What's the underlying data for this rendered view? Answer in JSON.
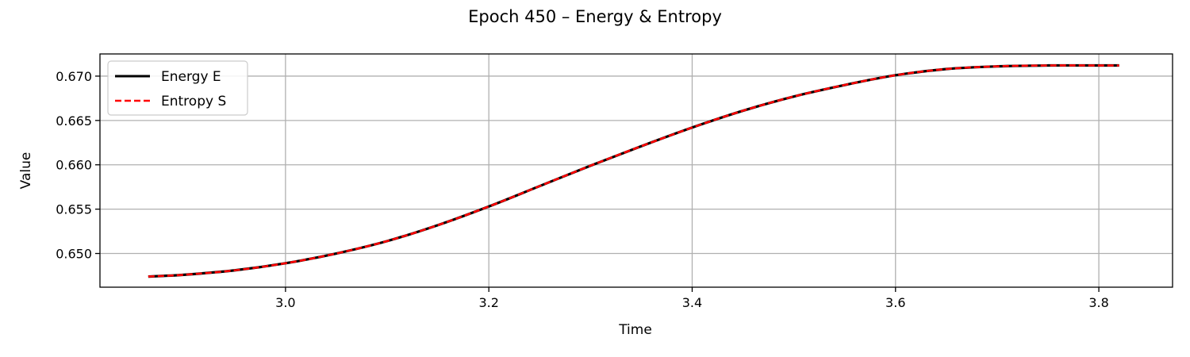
{
  "chart_data": {
    "type": "line",
    "title": "Epoch 450 – Energy & Entropy",
    "xlabel": "Time",
    "ylabel": "Value",
    "xlim": [
      2.8175,
      3.8725
    ],
    "ylim": [
      0.6462,
      0.6725
    ],
    "xticks": [
      3.0,
      3.2,
      3.4,
      3.6,
      3.8
    ],
    "xtick_labels": [
      "3.0",
      "3.2",
      "3.4",
      "3.6",
      "3.8"
    ],
    "yticks": [
      0.65,
      0.655,
      0.66,
      0.665,
      0.67
    ],
    "ytick_labels": [
      "0.650",
      "0.655",
      "0.660",
      "0.665",
      "0.670"
    ],
    "grid": true,
    "legend_position": "top-left",
    "series": [
      {
        "name": "Energy E",
        "color": "#000000",
        "style": "solid",
        "x": [
          2.865,
          2.9,
          2.95,
          3.0,
          3.05,
          3.1,
          3.15,
          3.2,
          3.25,
          3.3,
          3.35,
          3.4,
          3.45,
          3.5,
          3.55,
          3.6,
          3.65,
          3.7,
          3.75,
          3.8,
          3.82
        ],
        "y": [
          0.6474,
          0.6476,
          0.6481,
          0.6489,
          0.65,
          0.6514,
          0.6532,
          0.6553,
          0.6576,
          0.6599,
          0.6621,
          0.6642,
          0.6661,
          0.6677,
          0.669,
          0.6701,
          0.6708,
          0.6711,
          0.6712,
          0.6712,
          0.6712
        ]
      },
      {
        "name": "Entropy S",
        "color": "#ff0000",
        "style": "dashed",
        "x": [
          2.865,
          2.9,
          2.95,
          3.0,
          3.05,
          3.1,
          3.15,
          3.2,
          3.25,
          3.3,
          3.35,
          3.4,
          3.45,
          3.5,
          3.55,
          3.6,
          3.65,
          3.7,
          3.75,
          3.8,
          3.82
        ],
        "y": [
          0.6474,
          0.6476,
          0.6481,
          0.6489,
          0.65,
          0.6514,
          0.6532,
          0.6553,
          0.6576,
          0.6599,
          0.6621,
          0.6642,
          0.6661,
          0.6677,
          0.669,
          0.6701,
          0.6708,
          0.6711,
          0.6712,
          0.6712,
          0.6712
        ]
      }
    ]
  }
}
